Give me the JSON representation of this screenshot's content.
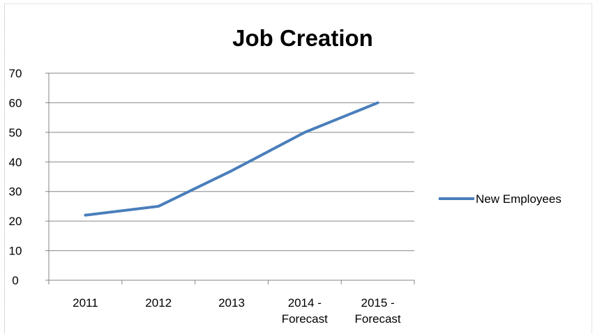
{
  "chart_data": {
    "type": "line",
    "title": "Job Creation",
    "categories": [
      "2011",
      "2012",
      "2013",
      "2014 - Forecast",
      "2015 - Forecast"
    ],
    "category_lines": [
      [
        "2011"
      ],
      [
        "2012"
      ],
      [
        "2013"
      ],
      [
        "2014 -",
        "Forecast"
      ],
      [
        "2015 -",
        "Forecast"
      ]
    ],
    "series": [
      {
        "name": "New Employees",
        "values": [
          22,
          25,
          37,
          50,
          60
        ],
        "color": "#4a7ebb"
      }
    ],
    "ylim": [
      0,
      70
    ],
    "yticks": [
      0,
      10,
      20,
      30,
      40,
      50,
      60,
      70
    ],
    "grid": true,
    "legend_position": "right"
  }
}
